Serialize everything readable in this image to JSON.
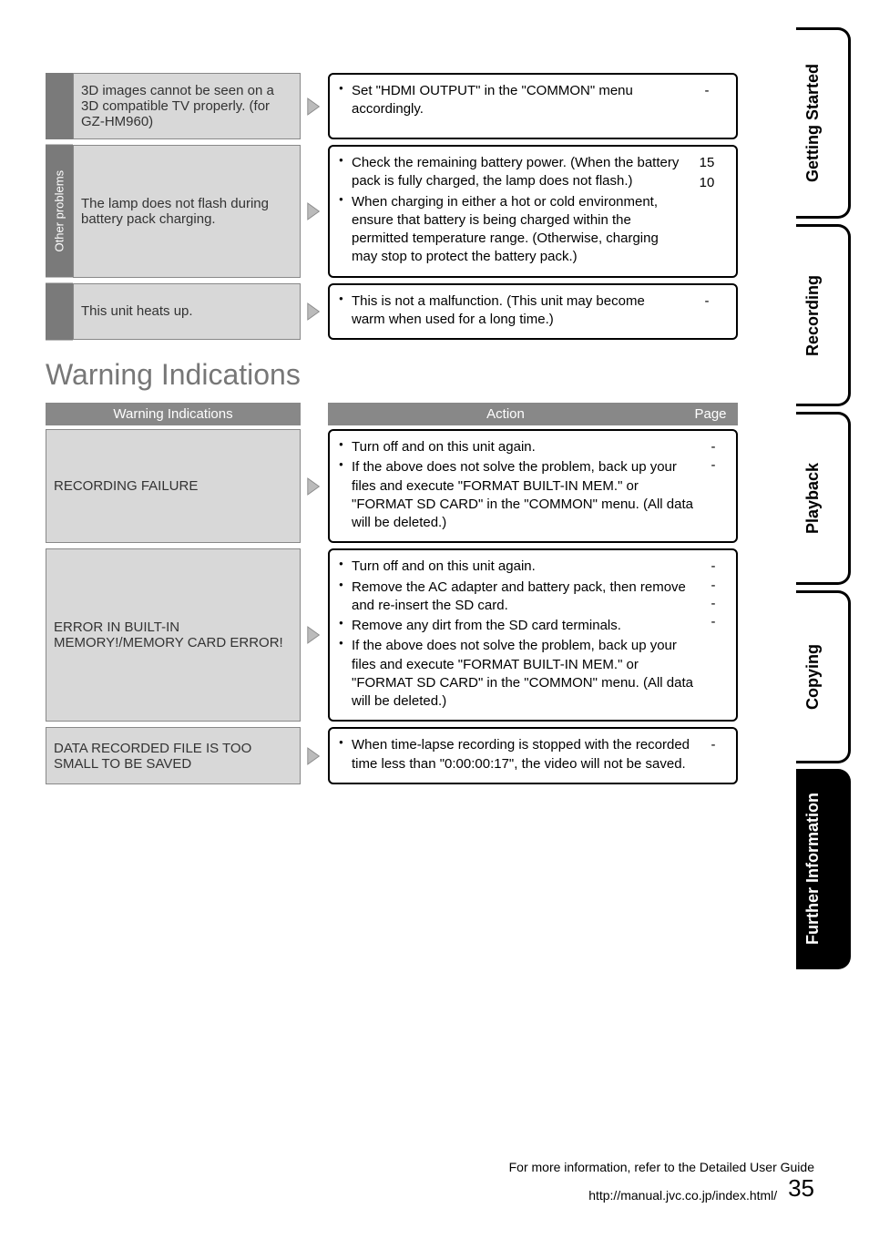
{
  "troubleshoot": [
    {
      "category": "",
      "problem": "3D images cannot be seen on a 3D compatible TV properly. (for GZ-HM960)",
      "solutions": [
        {
          "text": "Set \"HDMI OUTPUT\" in the \"COMMON\" menu accordingly.",
          "page": "-"
        }
      ]
    },
    {
      "category": "Other problems",
      "problem": "The lamp does not flash during battery pack charging.",
      "solutions": [
        {
          "text": "Check the remaining battery power. (When the battery pack is fully charged, the lamp does not flash.)",
          "page": "15"
        },
        {
          "text": "When charging in either a hot or cold environment, ensure that battery is being charged within the permitted temperature range. (Otherwise, charging may stop to protect the battery pack.)",
          "page": "10"
        }
      ]
    },
    {
      "category": "",
      "problem": "This unit heats up.",
      "solutions": [
        {
          "text": "This is not a malfunction. (This unit may become warm when used for a long time.)",
          "page": "-"
        }
      ]
    }
  ],
  "warning_section_title": "Warning Indications",
  "warning_headers": {
    "warn": "Warning Indications",
    "action": "Action",
    "page": "Page"
  },
  "warnings": [
    {
      "warn": "RECORDING FAILURE",
      "actions": [
        {
          "text": "Turn off and on this unit again.",
          "page": "-"
        },
        {
          "text": "If the above does not solve the problem, back up your files and execute \"FORMAT BUILT-IN MEM.\" or \"FORMAT SD CARD\" in the \"COMMON\" menu. (All data will be deleted.)",
          "page": "-"
        }
      ]
    },
    {
      "warn": "ERROR IN BUILT-IN MEMORY!/MEMORY CARD ERROR!",
      "actions": [
        {
          "text": "Turn off and on this unit again.",
          "page": "-"
        },
        {
          "text": "Remove the AC adapter and battery pack, then remove and re-insert the SD card.",
          "page": "-"
        },
        {
          "text": "Remove any dirt from the SD card terminals.",
          "page": "-"
        },
        {
          "text": "If the above does not solve the problem, back up your files and execute \"FORMAT BUILT-IN MEM.\" or \"FORMAT SD CARD\" in the \"COMMON\" menu. (All data will be deleted.)",
          "page": "-"
        }
      ]
    },
    {
      "warn": "DATA RECORDED FILE IS TOO SMALL TO BE SAVED",
      "actions": [
        {
          "text": "When time-lapse recording is stopped with the recorded time less than \"0:00:00:17\", the video will not be saved.",
          "page": "-"
        }
      ]
    }
  ],
  "tabs": [
    {
      "label": "Getting Started",
      "active": false
    },
    {
      "label": "Recording",
      "active": false
    },
    {
      "label": "Playback",
      "active": false
    },
    {
      "label": "Copying",
      "active": false
    },
    {
      "label": "Further Information",
      "active": true
    }
  ],
  "footer": {
    "line1": "For more information, refer to the Detailed User Guide",
    "line2": "http://manual.jvc.co.jp/index.html/",
    "page_number": "35"
  },
  "colors": {
    "category_bg": "#7a7a7a",
    "problem_bg": "#d8d8d8",
    "header_bg": "#888888",
    "tab_active_bg": "#000000",
    "border": "#000000"
  }
}
